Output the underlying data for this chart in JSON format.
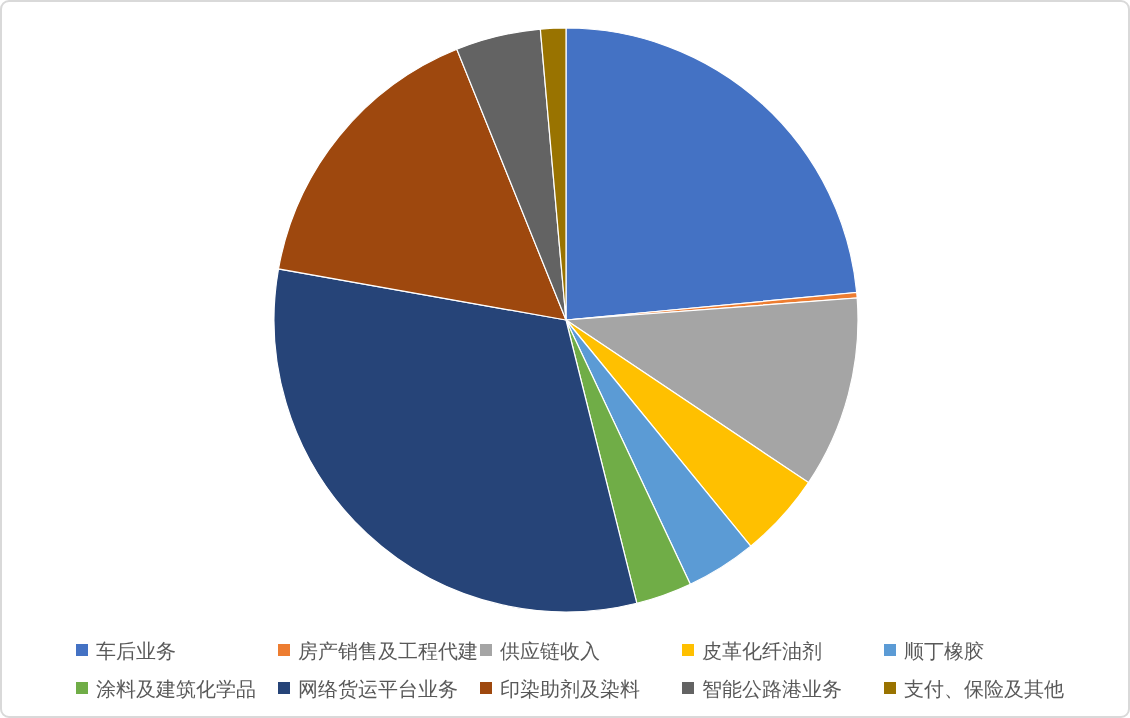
{
  "chart_data": {
    "type": "pie",
    "categories": [
      "车后业务",
      "房产销售及工程代建",
      "供应链收入",
      "皮革化纤油剂",
      "顺丁橡胶",
      "涂料及建筑化学品",
      "网络货运平台业务",
      "印染助剂及染料",
      "智能公路港业务",
      "支付、保险及其他"
    ],
    "values": [
      23.5,
      0.3,
      10.6,
      4.7,
      3.9,
      3.1,
      31.7,
      16.1,
      4.7,
      1.4
    ],
    "colors": [
      "#4472c4",
      "#ed7d31",
      "#a5a5a5",
      "#ffc000",
      "#5b9bd5",
      "#70ad47",
      "#264478",
      "#9e480e",
      "#636363",
      "#997300"
    ],
    "legend": "bottom"
  }
}
